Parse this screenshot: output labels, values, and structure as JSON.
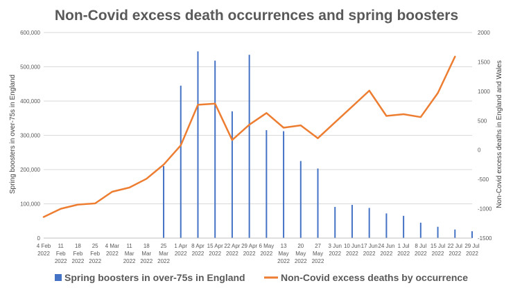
{
  "chart_data": {
    "type": "bar+line",
    "title": "Non-Covid excess death occurrences and spring boosters",
    "categories": [
      [
        "4 Feb",
        "2022"
      ],
      [
        "11",
        "Feb",
        "2022"
      ],
      [
        "18",
        "Feb",
        "2022"
      ],
      [
        "25",
        "Feb",
        "2022"
      ],
      [
        "4 Mar",
        "2022"
      ],
      [
        "11",
        "Mar",
        "2022"
      ],
      [
        "18",
        "Mar",
        "2022"
      ],
      [
        "25",
        "Mar",
        "2022"
      ],
      [
        "1 Apr",
        "2022"
      ],
      [
        "8 Apr",
        "2022"
      ],
      [
        "15 Apr",
        "2022"
      ],
      [
        "22 Apr",
        "2022"
      ],
      [
        "29 Apr",
        "2022"
      ],
      [
        "6 May",
        "2022"
      ],
      [
        "13",
        "May",
        "2022"
      ],
      [
        "20",
        "May",
        "2022"
      ],
      [
        "27",
        "May",
        "2022"
      ],
      [
        "3 Jun",
        "2022"
      ],
      [
        "10 Jun",
        "2022"
      ],
      [
        "17 Jun",
        "2022"
      ],
      [
        "24 Jun",
        "2022"
      ],
      [
        "1 Jul",
        "2022"
      ],
      [
        "8 Jul",
        "2022"
      ],
      [
        "15 Jul",
        "2022"
      ],
      [
        "22 Jul",
        "2022"
      ],
      [
        "29 Jul",
        "2022"
      ]
    ],
    "bar_series": {
      "name": "Spring boosters in over-75s in England",
      "color": "#4472c4",
      "values": [
        0,
        0,
        0,
        0,
        0,
        0,
        0,
        0,
        0,
        0,
        0,
        0,
        0,
        0,
        0,
        0,
        0,
        0,
        0,
        0,
        0,
        0,
        0,
        0,
        0,
        0
      ],
      "offset_values": [
        0,
        0,
        0,
        0,
        0,
        0,
        0,
        210000,
        445000,
        545000,
        518000,
        370000,
        535000,
        315000,
        312000,
        225000,
        203000,
        91000,
        97000,
        88000,
        72000,
        65000,
        45000,
        33000,
        25000,
        20000
      ]
    },
    "line_series": {
      "name": "Non-Covid excess deaths by occurrence",
      "color": "#ed7d31",
      "values": [
        -1140,
        -1000,
        -930,
        -910,
        -710,
        -640,
        -490,
        -250,
        80,
        770,
        790,
        170,
        430,
        630,
        380,
        420,
        200,
        470,
        740,
        1010,
        580,
        610,
        560,
        970,
        1590
      ]
    },
    "y_left": {
      "label": "Spring boosters in over-75s in England",
      "min": 0,
      "max": 600000,
      "step": 100000,
      "tick_labels": [
        "0",
        "100,000",
        "200,000",
        "300,000",
        "400,000",
        "500,000",
        "600,000"
      ]
    },
    "y_right": {
      "label": "Non-Covid excess deaths in England and Wales",
      "min": -1500,
      "max": 2000,
      "step": 500,
      "tick_labels": [
        "-1500",
        "-1000",
        "-500",
        "0",
        "500",
        "1000",
        "1500",
        "2000"
      ]
    },
    "grid": true,
    "legend_position": "bottom"
  }
}
